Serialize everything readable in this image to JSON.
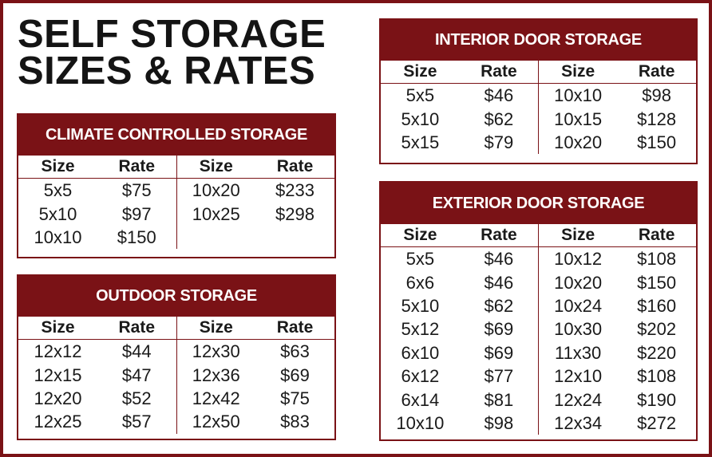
{
  "title": {
    "line1": "SELF STORAGE",
    "line2": "SIZES & RATES"
  },
  "headers": {
    "size": "Size",
    "rate": "Rate"
  },
  "climate": {
    "title": "CLIMATE CONTROLLED STORAGE",
    "rows": [
      [
        "5x5",
        "$75",
        "10x20",
        "$233"
      ],
      [
        "5x10",
        "$97",
        "10x25",
        "$298"
      ],
      [
        "10x10",
        "$150",
        "",
        ""
      ]
    ]
  },
  "outdoor": {
    "title": "OUTDOOR STORAGE",
    "rows": [
      [
        "12x12",
        "$44",
        "12x30",
        "$63"
      ],
      [
        "12x15",
        "$47",
        "12x36",
        "$69"
      ],
      [
        "12x20",
        "$52",
        "12x42",
        "$75"
      ],
      [
        "12x25",
        "$57",
        "12x50",
        "$83"
      ]
    ]
  },
  "interior": {
    "title": "INTERIOR DOOR STORAGE",
    "rows": [
      [
        "5x5",
        "$46",
        "10x10",
        "$98"
      ],
      [
        "5x10",
        "$62",
        "10x15",
        "$128"
      ],
      [
        "5x15",
        "$79",
        "10x20",
        "$150"
      ]
    ]
  },
  "exterior": {
    "title": "EXTERIOR DOOR STORAGE",
    "rows": [
      [
        "5x5",
        "$46",
        "10x12",
        "$108"
      ],
      [
        "6x6",
        "$46",
        "10x20",
        "$150"
      ],
      [
        "5x10",
        "$62",
        "10x24",
        "$160"
      ],
      [
        "5x12",
        "$69",
        "10x30",
        "$202"
      ],
      [
        "6x10",
        "$69",
        "11x30",
        "$220"
      ],
      [
        "6x12",
        "$77",
        "12x10",
        "$108"
      ],
      [
        "6x14",
        "$81",
        "12x24",
        "$190"
      ],
      [
        "10x10",
        "$98",
        "12x34",
        "$272"
      ]
    ]
  },
  "colors": {
    "brand": "#7a1216",
    "text": "#1a1a1a"
  }
}
